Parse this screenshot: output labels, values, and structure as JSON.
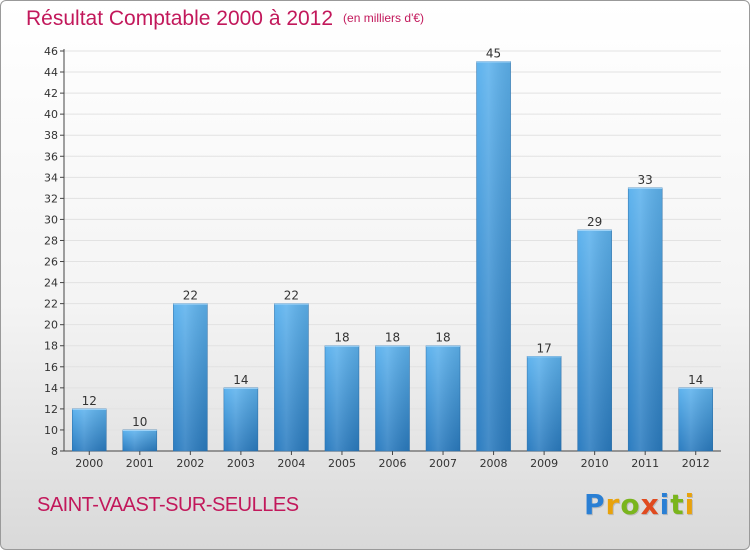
{
  "title": "Résultat Comptable 2000 à 2012",
  "subtitle": "(en milliers d'€)",
  "commune": "SAINT-VAAST-SUR-SEULLES",
  "brand": {
    "text": "Proxiti",
    "letters": [
      {
        "ch": "P",
        "color": "#2a7fd4"
      },
      {
        "ch": "r",
        "color": "#e8a20c"
      },
      {
        "ch": "o",
        "color": "#7ab51d"
      },
      {
        "ch": "x",
        "color": "#e04a1f"
      },
      {
        "ch": "i",
        "color": "#2a7fd4"
      },
      {
        "ch": "t",
        "color": "#7ab51d"
      },
      {
        "ch": "i",
        "color": "#e8a20c"
      }
    ]
  },
  "colors": {
    "title": "#c2185b",
    "bar_light": "#5aaeea",
    "bar_dark": "#2b7cc0",
    "axis_text": "#333333",
    "grid": "#e2e2e2"
  },
  "chart_data": {
    "type": "bar",
    "title": "Résultat Comptable 2000 à 2012",
    "categories": [
      "2000",
      "2001",
      "2002",
      "2003",
      "2004",
      "2005",
      "2006",
      "2007",
      "2008",
      "2009",
      "2010",
      "2011",
      "2012"
    ],
    "values": [
      12,
      10,
      22,
      14,
      22,
      18,
      18,
      18,
      45,
      17,
      29,
      33,
      14
    ],
    "ylim": [
      8,
      46
    ],
    "yticks": [
      8,
      10,
      12,
      14,
      16,
      18,
      20,
      22,
      24,
      26,
      28,
      30,
      32,
      34,
      36,
      38,
      40,
      42,
      44,
      46
    ],
    "xlabel": "",
    "ylabel": "",
    "grid": true,
    "data_labels": true
  }
}
